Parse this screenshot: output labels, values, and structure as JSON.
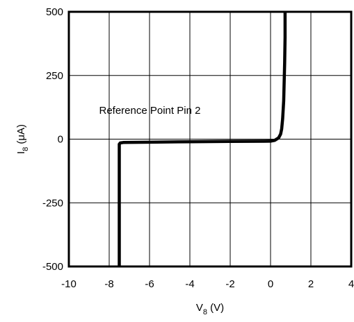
{
  "chart_data": {
    "type": "line",
    "title": "",
    "xlabel": {
      "main": "V",
      "sub": "8",
      "unit": " (V)"
    },
    "ylabel": {
      "main": "I",
      "sub": "8",
      "unit": " (μA)"
    },
    "xlim": [
      -10,
      4
    ],
    "ylim": [
      -500,
      500
    ],
    "xticks": [
      -10,
      -8,
      -6,
      -4,
      -2,
      0,
      2,
      4
    ],
    "yticks": [
      -500,
      -250,
      0,
      250,
      500
    ],
    "xtick_labels": [
      "-10",
      "-8",
      "-6",
      "-4",
      "-2",
      "0",
      "2",
      "4"
    ],
    "ytick_labels": [
      "-500",
      "-250",
      "0",
      "250",
      "500"
    ],
    "grid": true,
    "annotation": "Reference Point Pin 2",
    "series": [
      {
        "x": [
          -7.5,
          -7.5,
          -7.45,
          -7.3,
          -6,
          -4,
          -2,
          0,
          0.2,
          0.4,
          0.5,
          0.55,
          0.6,
          0.65,
          0.7,
          0.72,
          0.72
        ],
        "y": [
          -500,
          -20,
          -15,
          -13,
          -12,
          -10,
          -9,
          -8,
          -5,
          5,
          20,
          40,
          80,
          150,
          300,
          400,
          500
        ]
      }
    ]
  }
}
